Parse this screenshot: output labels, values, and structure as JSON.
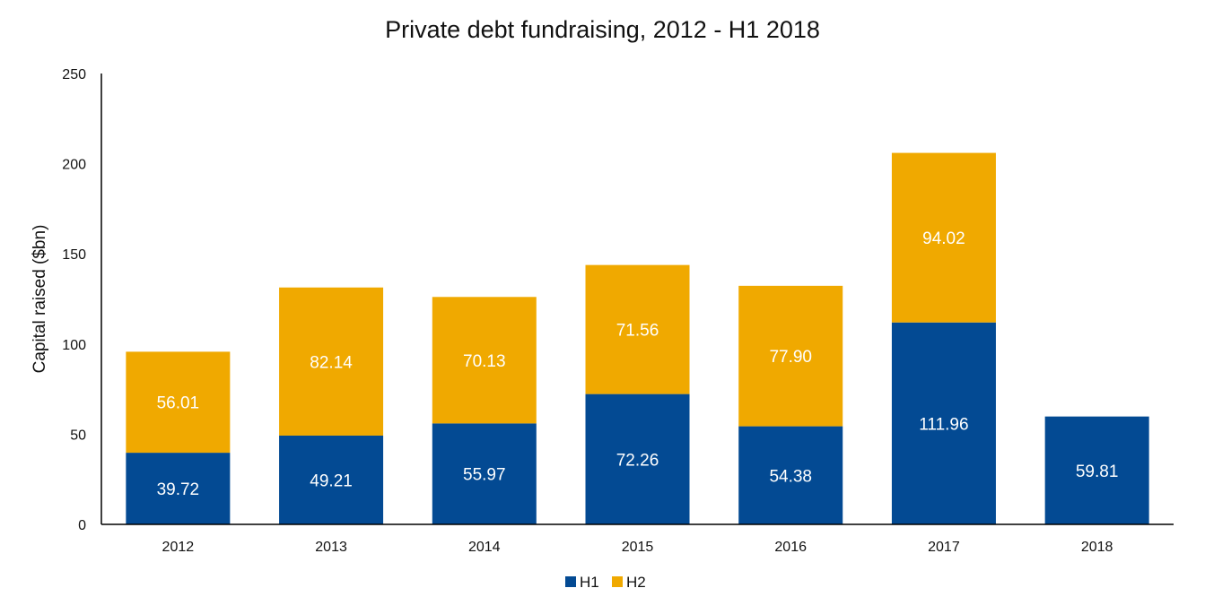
{
  "chart_data": {
    "type": "bar",
    "stacked": true,
    "title": "Private debt fundraising, 2012 - H1 2018",
    "xlabel": "",
    "ylabel": "Capital raised ($bn)",
    "ylim": [
      0,
      250
    ],
    "yticks": [
      0,
      50,
      100,
      150,
      200,
      250
    ],
    "grid": false,
    "legend_position": "bottom",
    "categories": [
      "2012",
      "2013",
      "2014",
      "2015",
      "2016",
      "2017",
      "2018"
    ],
    "series": [
      {
        "name": "H1",
        "color": "#034A93",
        "values": [
          39.72,
          49.21,
          55.97,
          72.26,
          54.38,
          111.96,
          59.81
        ],
        "labels": [
          "39.72",
          "49.21",
          "55.97",
          "72.26",
          "54.38",
          "111.96",
          "59.81"
        ]
      },
      {
        "name": "H2",
        "color": "#F0A900",
        "values": [
          56.01,
          82.14,
          70.13,
          71.56,
          77.9,
          94.02,
          null
        ],
        "labels": [
          "56.01",
          "82.14",
          "70.13",
          "71.56",
          "77.90",
          "94.02",
          null
        ]
      }
    ]
  }
}
